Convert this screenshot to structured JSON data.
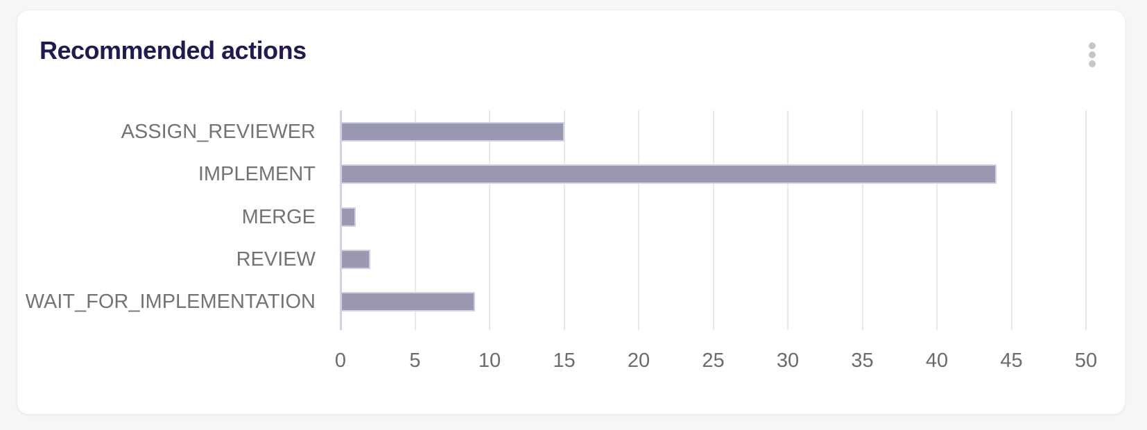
{
  "card": {
    "title": "Recommended actions",
    "menu_icon": "kebab-menu"
  },
  "chart_data": {
    "type": "bar",
    "orientation": "horizontal",
    "title": "Recommended actions",
    "categories": [
      "ASSIGN_REVIEWER",
      "IMPLEMENT",
      "MERGE",
      "REVIEW",
      "WAIT_FOR_IMPLEMENTATION"
    ],
    "values": [
      15,
      44,
      1,
      2,
      9
    ],
    "xlabel": "",
    "ylabel": "",
    "xlim": [
      0,
      50
    ],
    "xticks": [
      0,
      5,
      10,
      15,
      20,
      25,
      30,
      35,
      40,
      45,
      50
    ],
    "grid": true,
    "legend": false
  },
  "colors": {
    "bar": "#9a99b1",
    "bar_border": "#ced1e5",
    "grid_line": "#e9e9ec",
    "axis_line": "#ccd3ef",
    "title_text": "#1e1a53",
    "category_text": "#737373",
    "tick_text": "#6b6b6b",
    "card_bg": "#ffffff",
    "page_bg": "#f6f6f8",
    "kebab_dot": "#c6c6ca"
  }
}
